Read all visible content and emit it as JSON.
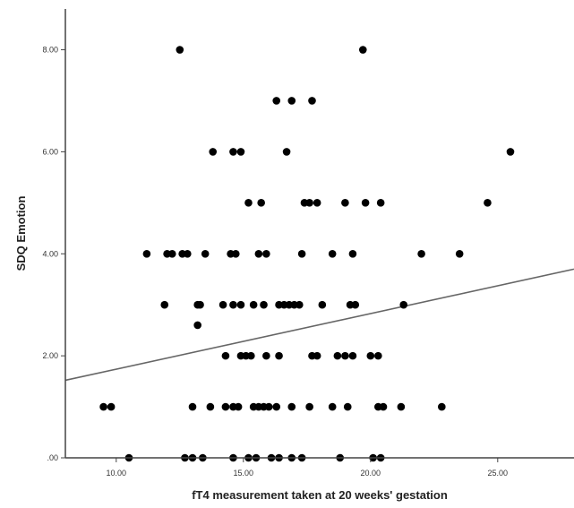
{
  "chart_data": {
    "type": "scatter",
    "title": "",
    "xlabel": "fT4 measurement taken at 20 weeks' gestation",
    "ylabel": "SDQ Emotion",
    "xlim": [
      8.0,
      28.0
    ],
    "ylim": [
      0.0,
      8.8
    ],
    "x_ticks": [
      10,
      15,
      20,
      25
    ],
    "x_tick_labels": [
      "10.00",
      "15.00",
      "20.00",
      "25.00"
    ],
    "y_ticks": [
      0,
      2,
      4,
      6,
      8
    ],
    "y_tick_labels": [
      ".00",
      "2.00",
      "4.00",
      "6.00",
      "8.00"
    ],
    "grid": false,
    "colors": {
      "points": "#000000",
      "fit_line": "#666666",
      "axes": "#444444"
    },
    "fit_line": {
      "x": [
        8.0,
        28.0
      ],
      "y": [
        1.52,
        3.7
      ]
    },
    "points": [
      {
        "x": 12.5,
        "y": 8
      },
      {
        "x": 19.7,
        "y": 8
      },
      {
        "x": 16.3,
        "y": 7
      },
      {
        "x": 16.9,
        "y": 7
      },
      {
        "x": 17.7,
        "y": 7
      },
      {
        "x": 13.8,
        "y": 6
      },
      {
        "x": 14.6,
        "y": 6
      },
      {
        "x": 14.9,
        "y": 6
      },
      {
        "x": 16.7,
        "y": 6
      },
      {
        "x": 25.5,
        "y": 6
      },
      {
        "x": 15.2,
        "y": 5
      },
      {
        "x": 15.7,
        "y": 5
      },
      {
        "x": 17.4,
        "y": 5
      },
      {
        "x": 17.6,
        "y": 5
      },
      {
        "x": 17.9,
        "y": 5
      },
      {
        "x": 19.0,
        "y": 5
      },
      {
        "x": 19.8,
        "y": 5
      },
      {
        "x": 20.4,
        "y": 5
      },
      {
        "x": 24.6,
        "y": 5
      },
      {
        "x": 11.2,
        "y": 4
      },
      {
        "x": 12.0,
        "y": 4
      },
      {
        "x": 12.2,
        "y": 4
      },
      {
        "x": 12.6,
        "y": 4
      },
      {
        "x": 12.8,
        "y": 4
      },
      {
        "x": 13.5,
        "y": 4
      },
      {
        "x": 14.5,
        "y": 4
      },
      {
        "x": 14.7,
        "y": 4
      },
      {
        "x": 15.6,
        "y": 4
      },
      {
        "x": 15.9,
        "y": 4
      },
      {
        "x": 17.3,
        "y": 4
      },
      {
        "x": 18.5,
        "y": 4
      },
      {
        "x": 19.3,
        "y": 4
      },
      {
        "x": 22.0,
        "y": 4
      },
      {
        "x": 23.5,
        "y": 4
      },
      {
        "x": 11.9,
        "y": 3
      },
      {
        "x": 13.2,
        "y": 3
      },
      {
        "x": 13.3,
        "y": 3
      },
      {
        "x": 14.2,
        "y": 3
      },
      {
        "x": 14.6,
        "y": 3
      },
      {
        "x": 14.9,
        "y": 3
      },
      {
        "x": 15.4,
        "y": 3
      },
      {
        "x": 15.8,
        "y": 3
      },
      {
        "x": 16.4,
        "y": 3
      },
      {
        "x": 16.6,
        "y": 3
      },
      {
        "x": 16.8,
        "y": 3
      },
      {
        "x": 17.0,
        "y": 3
      },
      {
        "x": 17.2,
        "y": 3
      },
      {
        "x": 18.1,
        "y": 3
      },
      {
        "x": 19.2,
        "y": 3
      },
      {
        "x": 19.4,
        "y": 3
      },
      {
        "x": 21.3,
        "y": 3
      },
      {
        "x": 13.2,
        "y": 2.6
      },
      {
        "x": 14.3,
        "y": 2
      },
      {
        "x": 14.9,
        "y": 2
      },
      {
        "x": 15.1,
        "y": 2
      },
      {
        "x": 15.3,
        "y": 2
      },
      {
        "x": 15.9,
        "y": 2
      },
      {
        "x": 16.4,
        "y": 2
      },
      {
        "x": 17.7,
        "y": 2
      },
      {
        "x": 17.9,
        "y": 2
      },
      {
        "x": 18.7,
        "y": 2
      },
      {
        "x": 19.0,
        "y": 2
      },
      {
        "x": 19.3,
        "y": 2
      },
      {
        "x": 20.0,
        "y": 2
      },
      {
        "x": 20.3,
        "y": 2
      },
      {
        "x": 9.5,
        "y": 1
      },
      {
        "x": 9.8,
        "y": 1
      },
      {
        "x": 13.0,
        "y": 1
      },
      {
        "x": 13.7,
        "y": 1
      },
      {
        "x": 14.3,
        "y": 1
      },
      {
        "x": 14.6,
        "y": 1
      },
      {
        "x": 14.8,
        "y": 1
      },
      {
        "x": 15.4,
        "y": 1
      },
      {
        "x": 15.6,
        "y": 1
      },
      {
        "x": 15.8,
        "y": 1
      },
      {
        "x": 16.0,
        "y": 1
      },
      {
        "x": 16.3,
        "y": 1
      },
      {
        "x": 16.9,
        "y": 1
      },
      {
        "x": 17.6,
        "y": 1
      },
      {
        "x": 18.5,
        "y": 1
      },
      {
        "x": 19.1,
        "y": 1
      },
      {
        "x": 20.3,
        "y": 1
      },
      {
        "x": 20.5,
        "y": 1
      },
      {
        "x": 21.2,
        "y": 1
      },
      {
        "x": 22.8,
        "y": 1
      },
      {
        "x": 10.5,
        "y": 0
      },
      {
        "x": 12.7,
        "y": 0
      },
      {
        "x": 13.0,
        "y": 0
      },
      {
        "x": 13.4,
        "y": 0
      },
      {
        "x": 14.6,
        "y": 0
      },
      {
        "x": 15.2,
        "y": 0
      },
      {
        "x": 15.5,
        "y": 0
      },
      {
        "x": 16.1,
        "y": 0
      },
      {
        "x": 16.4,
        "y": 0
      },
      {
        "x": 16.9,
        "y": 0
      },
      {
        "x": 17.3,
        "y": 0
      },
      {
        "x": 18.8,
        "y": 0
      },
      {
        "x": 20.1,
        "y": 0
      },
      {
        "x": 20.4,
        "y": 0
      }
    ]
  }
}
